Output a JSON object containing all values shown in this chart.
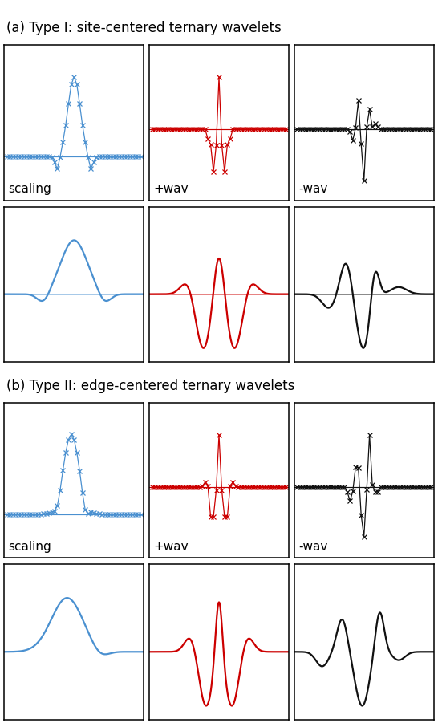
{
  "title_a": "(a) Type I: site-centered ternary wavelets",
  "title_b": "(b) Type II: edge-centered ternary wavelets",
  "label_scaling": "scaling",
  "label_pwav": "+wav",
  "label_mwav": "-wav",
  "color_blue": "#4a90d0",
  "color_red": "#cc0000",
  "color_black": "#111111",
  "bg_color": "#ffffff",
  "title_fontsize": 12,
  "label_fontsize": 11
}
